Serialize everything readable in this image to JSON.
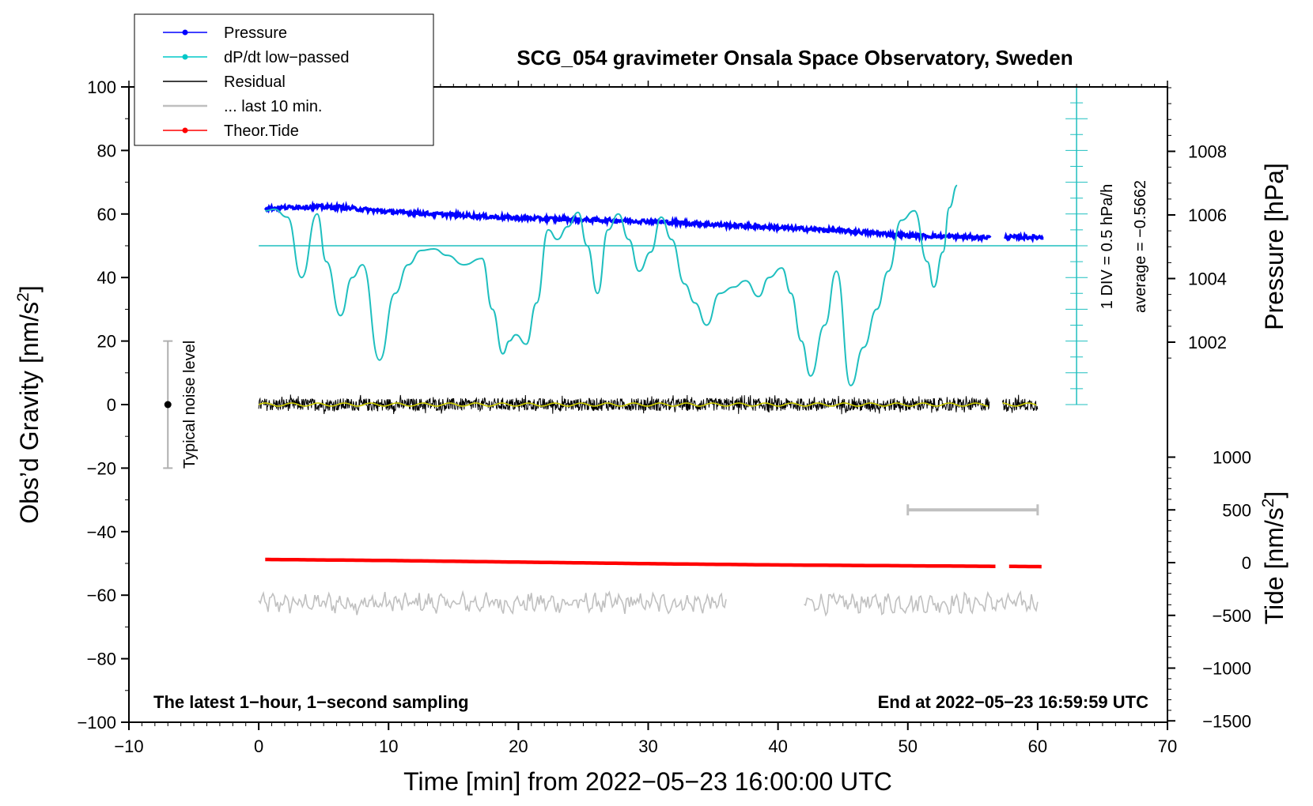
{
  "chart_data": {
    "type": "line",
    "title": "SCG_054 gravimeter Onsala Space Observatory, Sweden",
    "xlabel": "Time [min] from 2022−05−23 16:00:00 UTC",
    "ylabel_left_main": "Obs’d Gravity [nm/s",
    "ylabel_left_sup": "2",
    "ylabel_left_close": "]",
    "ylabel_right_pressure": "Pressure [hPa]",
    "ylabel_right_tide_main": "Tide [nm/s",
    "ylabel_right_tide_sup": "2",
    "ylabel_right_tide_close": "]",
    "xlim": [
      -10,
      70
    ],
    "ylim": [
      -100,
      100
    ],
    "xticks": [
      -10,
      0,
      10,
      20,
      30,
      40,
      50,
      60,
      70
    ],
    "xtick_labels": [
      "−10",
      "0",
      "10",
      "20",
      "30",
      "40",
      "50",
      "60",
      "70"
    ],
    "yticks": [
      -100,
      -80,
      -60,
      -40,
      -20,
      0,
      20,
      40,
      60,
      80,
      100
    ],
    "ytick_labels": [
      "−100",
      "−80",
      "−60",
      "−40",
      "−20",
      "0",
      "20",
      "40",
      "60",
      "80",
      "100"
    ],
    "pressure_ticks": [
      1002,
      1004,
      1006,
      1008
    ],
    "pressure_tick_labels": [
      "1002",
      "1004",
      "1006",
      "1008"
    ],
    "tide_ticks": [
      1000,
      500,
      0,
      -500,
      -1000,
      -1500
    ],
    "tide_tick_labels": [
      "1000",
      "500",
      "0",
      "−500",
      "−1000",
      "−1500"
    ],
    "legend": {
      "position": "top-left",
      "entries": [
        {
          "label": "Pressure",
          "color": "#0000ff",
          "marker": true
        },
        {
          "label": "dP/dt low−passed",
          "color": "#00c8c8",
          "marker": true
        },
        {
          "label": "Residual",
          "color": "#000000",
          "marker": false
        },
        {
          "label": "... last 10 min.",
          "color": "#bfbfbf",
          "marker": false
        },
        {
          "label": "Theor.Tide",
          "color": "#ff0000",
          "marker": true
        }
      ]
    },
    "annotations": {
      "bottom_left": "The latest 1−hour, 1−second sampling",
      "bottom_right": "End at 2022−05−23 16:59:59 UTC",
      "noise": "Typical noise level",
      "div": "1 DIV = 0.5 hPa/h",
      "average": "average = −0.5662"
    },
    "noise_bar": {
      "x": -7,
      "y0": -20,
      "y1": 20,
      "center": 0
    },
    "dpdt_axis": {
      "x": 63,
      "y_top": 100,
      "y_bottom": 0,
      "baseline_y": 50,
      "minor_step": 5
    },
    "window_bar": {
      "x0": 50,
      "x1": 60,
      "tide": 500
    },
    "series": [
      {
        "name": "Pressure",
        "unit": "hPa",
        "color": "#0000ff",
        "segments": [
          [
            0.5,
            56.4
          ],
          [
            57.5,
            60.5
          ]
        ],
        "trend_x": [
          0.5,
          3,
          6,
          10,
          15,
          20,
          25,
          30,
          35,
          40,
          45,
          50,
          55,
          60.5
        ],
        "trend_y": [
          1006.2,
          1006.25,
          1006.25,
          1006.1,
          1006.0,
          1005.9,
          1005.85,
          1005.8,
          1005.7,
          1005.6,
          1005.5,
          1005.35,
          1005.3,
          1005.3
        ]
      },
      {
        "name": "dP/dt low-passed",
        "color": "#1fbfbf",
        "x": [
          0.5,
          1.2,
          2.2,
          3.3,
          4.5,
          5.2,
          6.3,
          7.2,
          8.0,
          9.3,
          10.5,
          11.5,
          12.5,
          13.5,
          14.5,
          15.8,
          17.2,
          18.0,
          18.8,
          19.3,
          19.8,
          20.6,
          21.4,
          22.3,
          23.0,
          23.8,
          24.6,
          25.3,
          26.1,
          26.9,
          27.7,
          28.5,
          29.3,
          30.2,
          31.0,
          31.8,
          32.8,
          33.6,
          34.5,
          35.5,
          36.6,
          37.5,
          38.5,
          39.3,
          40.3,
          41.0,
          41.8,
          42.5,
          43.6,
          44.5,
          45.6,
          46.6,
          47.6,
          48.5,
          49.5,
          50.5,
          51.5,
          52.0,
          52.7,
          53.2,
          53.8
        ],
        "y": [
          61.0,
          61.5,
          59.0,
          40.0,
          60.0,
          45.0,
          28.0,
          40.0,
          44.0,
          14.0,
          35.0,
          44.0,
          48.5,
          49.0,
          47.0,
          44.0,
          46.0,
          30.0,
          16.0,
          20.0,
          22.0,
          19.0,
          32.0,
          55.0,
          52.0,
          56.0,
          60.5,
          50.0,
          35.0,
          55.0,
          60.0,
          52.0,
          42.0,
          48.0,
          59.0,
          52.0,
          38.0,
          32.0,
          25.0,
          35.0,
          37.0,
          39.0,
          34.0,
          40.0,
          43.0,
          35.0,
          20.0,
          9.0,
          25.0,
          42.0,
          6.0,
          18.0,
          30.0,
          42.0,
          58.0,
          61.0,
          45.0,
          37.0,
          48.0,
          62.0,
          69.0
        ]
      },
      {
        "name": "Residual",
        "color": "#000000",
        "segments": [
          [
            0,
            56.3
          ],
          [
            57.3,
            60.0
          ]
        ],
        "center": 0,
        "amplitude": 2
      },
      {
        "name": "Residual smoothed",
        "color": "#cccc00",
        "segments": [
          [
            0,
            56.3
          ],
          [
            57.3,
            60.0
          ]
        ],
        "center": 0
      },
      {
        "name": "... last 10 min.",
        "color": "#c0c0c0",
        "segments": [
          [
            0,
            36.0
          ],
          [
            42.0,
            60.0
          ]
        ],
        "center": -62.5,
        "amplitude": 2.5
      },
      {
        "name": "Theor.Tide",
        "color": "#ff0000",
        "segments": [
          [
            0.5,
            56.9
          ],
          [
            57.8,
            60.5
          ]
        ],
        "x": [
          0.5,
          10,
          20,
          30,
          40,
          50,
          60.5
        ],
        "y": [
          30,
          20,
          5,
          -10,
          -22,
          -30,
          -38
        ]
      }
    ]
  }
}
